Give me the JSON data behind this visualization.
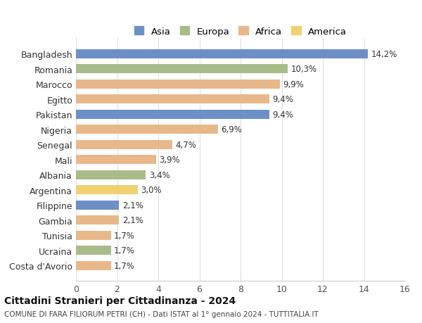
{
  "categories": [
    "Bangladesh",
    "Romania",
    "Marocco",
    "Egitto",
    "Pakistan",
    "Nigeria",
    "Senegal",
    "Mali",
    "Albania",
    "Argentina",
    "Filippine",
    "Gambia",
    "Tunisia",
    "Ucraina",
    "Costa d'Avorio"
  ],
  "values": [
    14.2,
    10.3,
    9.9,
    9.4,
    9.4,
    6.9,
    4.7,
    3.9,
    3.4,
    3.0,
    2.1,
    2.1,
    1.7,
    1.7,
    1.7
  ],
  "labels": [
    "14,2%",
    "10,3%",
    "9,9%",
    "9,4%",
    "9,4%",
    "6,9%",
    "4,7%",
    "3,9%",
    "3,4%",
    "3,0%",
    "2,1%",
    "2,1%",
    "1,7%",
    "1,7%",
    "1,7%"
  ],
  "continents": [
    "Asia",
    "Europa",
    "Africa",
    "Africa",
    "Asia",
    "Africa",
    "Africa",
    "Africa",
    "Europa",
    "America",
    "Asia",
    "Africa",
    "Africa",
    "Europa",
    "Africa"
  ],
  "colors": {
    "Asia": "#6d8fc7",
    "Europa": "#a8bc8a",
    "Africa": "#e8b88a",
    "America": "#f0d070"
  },
  "legend_order": [
    "Asia",
    "Europa",
    "Africa",
    "America"
  ],
  "title": "Cittadini Stranieri per Cittadinanza - 2024",
  "subtitle": "COMUNE DI FARA FILIORUM PETRI (CH) - Dati ISTAT al 1° gennaio 2024 - TUTTITALIA.IT",
  "xlabel_ticks": [
    0,
    2,
    4,
    6,
    8,
    10,
    12,
    14,
    16
  ],
  "xlim": [
    0,
    16
  ],
  "background_color": "#ffffff",
  "grid_color": "#e0e0e0"
}
